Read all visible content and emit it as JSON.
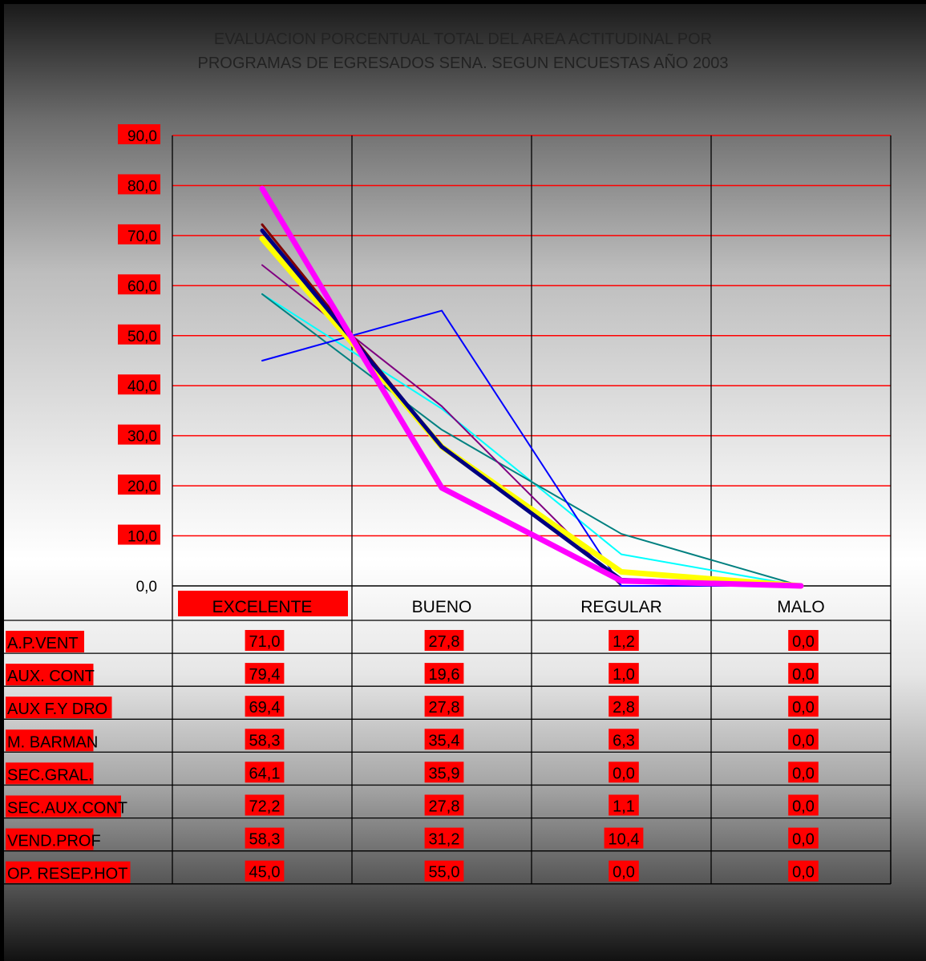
{
  "chart_data": {
    "type": "line",
    "title": "EVALUACION PORCENTUAL TOTAL DEL AREA ACTITUDINAL POR",
    "subtitle": "PROGRAMAS DE EGRESADOS SENA. SEGUN ENCUESTAS   AÑO 2003",
    "categories": [
      "EXCELENTE",
      "BUENO",
      "REGULAR",
      "MALO"
    ],
    "ylim": [
      0,
      90
    ],
    "yticks": [
      "0,0",
      "10,0",
      "20,0",
      "30,0",
      "40,0",
      "50,0",
      "60,0",
      "70,0",
      "80,0",
      "90,0"
    ],
    "grid": true,
    "series": [
      {
        "name": "A.P.VENT",
        "values": [
          71.0,
          27.8,
          1.2,
          0.0
        ],
        "labels": [
          "71,0",
          "27,8",
          "1,2",
          "0,0"
        ],
        "color": "#000080"
      },
      {
        "name": "AUX. CONT",
        "values": [
          79.4,
          19.6,
          1.0,
          0.0
        ],
        "labels": [
          "79,4",
          "19,6",
          "1,0",
          "0,0"
        ],
        "color": "#ff00ff"
      },
      {
        "name": "AUX F.Y DRO",
        "values": [
          69.4,
          27.8,
          2.8,
          0.0
        ],
        "labels": [
          "69,4",
          "27,8",
          "2,8",
          "0,0"
        ],
        "color": "#ffff00"
      },
      {
        "name": "M. BARMAN",
        "values": [
          58.3,
          35.4,
          6.3,
          0.0
        ],
        "labels": [
          "58,3",
          "35,4",
          "6,3",
          "0,0"
        ],
        "color": "#00ffff"
      },
      {
        "name": "SEC.GRAL.",
        "values": [
          64.1,
          35.9,
          0.0,
          0.0
        ],
        "labels": [
          "64,1",
          "35,9",
          "0,0",
          "0,0"
        ],
        "color": "#800080"
      },
      {
        "name": "SEC.AUX.CONT",
        "values": [
          72.2,
          27.8,
          1.1,
          0.0
        ],
        "labels": [
          "72,2",
          "27,8",
          "1,1",
          "0,0"
        ],
        "color": "#800000"
      },
      {
        "name": "VEND.PROF",
        "values": [
          58.3,
          31.2,
          10.4,
          0.0
        ],
        "labels": [
          "58,3",
          "31,2",
          "10,4",
          "0,0"
        ],
        "color": "#008080"
      },
      {
        "name": "OP. RESEP.HOT",
        "values": [
          45.0,
          55.0,
          0.0,
          0.0
        ],
        "labels": [
          "45,0",
          "55,0",
          "0,0",
          "0,0"
        ],
        "color": "#0000ff"
      }
    ]
  }
}
